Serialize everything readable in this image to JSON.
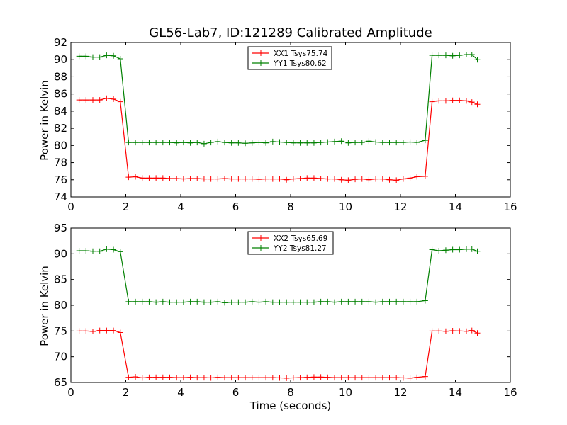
{
  "title": "GL56-Lab7, ID:121289 Calibrated Amplitude",
  "chart_data": [
    {
      "type": "line",
      "title": "GL56-Lab7, ID:121289 Calibrated Amplitude",
      "xlabel": "",
      "ylabel": "Power in Kelvin",
      "xlim": [
        0,
        16
      ],
      "ylim": [
        74,
        92
      ],
      "xticks": [
        "0",
        "2",
        "4",
        "6",
        "8",
        "10",
        "12",
        "14",
        "16"
      ],
      "yticks": [
        "74",
        "76",
        "78",
        "80",
        "82",
        "84",
        "86",
        "88",
        "90",
        "92"
      ],
      "grid": false,
      "legend_position": "top-center",
      "x": [
        0.3,
        0.55,
        0.8,
        1.05,
        1.3,
        1.55,
        1.8,
        2.1,
        2.35,
        2.6,
        2.85,
        3.1,
        3.35,
        3.6,
        3.85,
        4.1,
        4.35,
        4.6,
        4.85,
        5.1,
        5.35,
        5.6,
        5.85,
        6.1,
        6.35,
        6.6,
        6.85,
        7.1,
        7.35,
        7.6,
        7.85,
        8.1,
        8.35,
        8.6,
        8.85,
        9.1,
        9.35,
        9.6,
        9.85,
        10.1,
        10.35,
        10.6,
        10.85,
        11.1,
        11.35,
        11.6,
        11.85,
        12.1,
        12.35,
        12.6,
        12.9,
        13.15,
        13.4,
        13.65,
        13.9,
        14.15,
        14.4,
        14.6,
        14.8
      ],
      "series": [
        {
          "name": "XX1 Tsys75.74",
          "color": "#ff0000",
          "values": [
            85.3,
            85.3,
            85.3,
            85.3,
            85.5,
            85.4,
            85.1,
            76.3,
            76.35,
            76.2,
            76.2,
            76.2,
            76.2,
            76.15,
            76.15,
            76.1,
            76.15,
            76.15,
            76.1,
            76.1,
            76.1,
            76.15,
            76.1,
            76.1,
            76.1,
            76.1,
            76.05,
            76.1,
            76.1,
            76.1,
            76.0,
            76.1,
            76.15,
            76.2,
            76.2,
            76.15,
            76.1,
            76.1,
            76.0,
            75.95,
            76.05,
            76.1,
            76.0,
            76.1,
            76.1,
            76.0,
            75.95,
            76.1,
            76.2,
            76.35,
            76.4,
            85.1,
            85.2,
            85.2,
            85.25,
            85.25,
            85.2,
            85.05,
            84.8
          ]
        },
        {
          "name": "YY1 Tsys80.62",
          "color": "#008000",
          "values": [
            90.4,
            90.4,
            90.3,
            90.3,
            90.5,
            90.45,
            90.1,
            80.35,
            80.35,
            80.35,
            80.35,
            80.35,
            80.35,
            80.35,
            80.3,
            80.35,
            80.3,
            80.35,
            80.2,
            80.35,
            80.45,
            80.35,
            80.3,
            80.3,
            80.25,
            80.3,
            80.35,
            80.3,
            80.45,
            80.4,
            80.35,
            80.3,
            80.3,
            80.3,
            80.3,
            80.35,
            80.4,
            80.45,
            80.5,
            80.3,
            80.35,
            80.35,
            80.5,
            80.4,
            80.35,
            80.35,
            80.35,
            80.35,
            80.4,
            80.35,
            80.6,
            90.5,
            90.5,
            90.5,
            90.45,
            90.5,
            90.6,
            90.6,
            90.0
          ]
        }
      ]
    },
    {
      "type": "line",
      "title": "",
      "xlabel": "Time (seconds)",
      "ylabel": "Power in Kelvin",
      "xlim": [
        0,
        16
      ],
      "ylim": [
        65,
        95
      ],
      "xticks": [
        "0",
        "2",
        "4",
        "6",
        "8",
        "10",
        "12",
        "14",
        "16"
      ],
      "yticks": [
        "65",
        "70",
        "75",
        "80",
        "85",
        "90",
        "95"
      ],
      "grid": false,
      "legend_position": "top-center",
      "x": [
        0.3,
        0.55,
        0.8,
        1.05,
        1.3,
        1.55,
        1.8,
        2.1,
        2.35,
        2.6,
        2.85,
        3.1,
        3.35,
        3.6,
        3.85,
        4.1,
        4.35,
        4.6,
        4.85,
        5.1,
        5.35,
        5.6,
        5.85,
        6.1,
        6.35,
        6.6,
        6.85,
        7.1,
        7.35,
        7.6,
        7.85,
        8.1,
        8.35,
        8.6,
        8.85,
        9.1,
        9.35,
        9.6,
        9.85,
        10.1,
        10.35,
        10.6,
        10.85,
        11.1,
        11.35,
        11.6,
        11.85,
        12.1,
        12.35,
        12.6,
        12.9,
        13.15,
        13.4,
        13.65,
        13.9,
        14.15,
        14.4,
        14.6,
        14.8
      ],
      "series": [
        {
          "name": "XX2 Tsys65.69",
          "color": "#ff0000",
          "values": [
            75.0,
            75.0,
            74.9,
            75.1,
            75.1,
            75.1,
            74.7,
            66.0,
            66.1,
            65.9,
            66.0,
            66.0,
            66.0,
            66.0,
            65.95,
            65.95,
            66.0,
            65.95,
            65.95,
            65.9,
            66.0,
            65.95,
            65.95,
            65.95,
            65.95,
            65.95,
            65.95,
            65.95,
            65.95,
            65.9,
            65.85,
            65.9,
            65.95,
            66.0,
            66.05,
            66.05,
            66.0,
            65.95,
            65.95,
            65.95,
            65.95,
            65.95,
            65.95,
            65.95,
            65.95,
            65.95,
            65.95,
            65.9,
            65.85,
            66.0,
            66.15,
            75.0,
            75.0,
            74.95,
            75.05,
            75.0,
            74.95,
            75.1,
            74.6
          ]
        },
        {
          "name": "YY2 Tsys81.27",
          "color": "#008000",
          "values": [
            90.6,
            90.6,
            90.5,
            90.5,
            90.9,
            90.8,
            90.4,
            80.7,
            80.7,
            80.7,
            80.7,
            80.6,
            80.7,
            80.6,
            80.6,
            80.6,
            80.7,
            80.7,
            80.6,
            80.6,
            80.7,
            80.5,
            80.6,
            80.6,
            80.6,
            80.7,
            80.6,
            80.7,
            80.6,
            80.6,
            80.6,
            80.6,
            80.6,
            80.6,
            80.6,
            80.7,
            80.7,
            80.6,
            80.7,
            80.7,
            80.7,
            80.7,
            80.7,
            80.6,
            80.7,
            80.7,
            80.7,
            80.7,
            80.7,
            80.7,
            80.9,
            90.8,
            90.6,
            90.7,
            90.8,
            90.8,
            90.9,
            90.9,
            90.5
          ]
        }
      ]
    }
  ]
}
